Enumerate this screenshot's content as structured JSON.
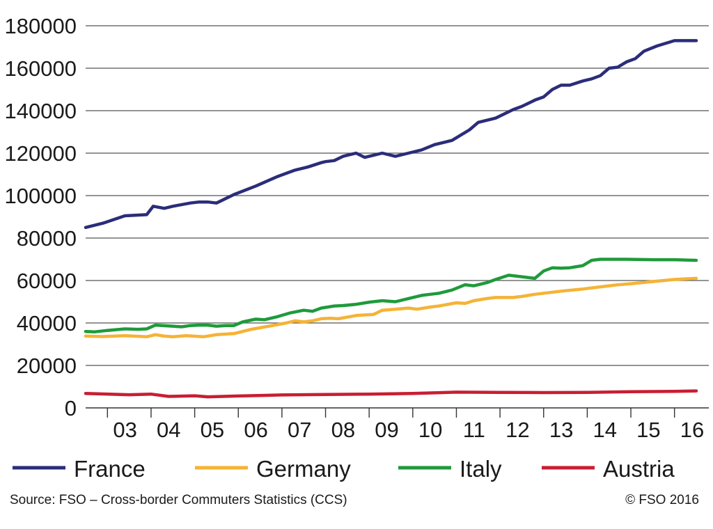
{
  "chart_data": {
    "type": "line",
    "ylim": [
      0,
      180000
    ],
    "y_ticks": [
      0,
      20000,
      40000,
      60000,
      80000,
      100000,
      120000,
      140000,
      160000,
      180000
    ],
    "y_tick_labels": [
      "0",
      "20000",
      "40000",
      "60000",
      "80000",
      "100000",
      "120000",
      "140000",
      "160000",
      "180000"
    ],
    "x_tick_labels": [
      "03",
      "04",
      "05",
      "06",
      "07",
      "08",
      "09",
      "10",
      "11",
      "12",
      "13",
      "14",
      "15",
      "16"
    ],
    "x_label_positions": [
      2003.5,
      2004.5,
      2005.5,
      2006.5,
      2007.5,
      2008.5,
      2009.5,
      2010.5,
      2011.5,
      2012.5,
      2013.5,
      2014.5,
      2015.5,
      2016.5
    ],
    "xlim": [
      2002.5,
      2016.7
    ],
    "grid": "horizontal",
    "legend_position": "bottom",
    "series": [
      {
        "name": "France",
        "color": "#2b2d7a",
        "x": [
          2002.5,
          2002.9,
          2003.4,
          2003.9,
          2004.05,
          2004.3,
          2004.5,
          2004.9,
          2005.1,
          2005.3,
          2005.5,
          2005.9,
          2006.4,
          2006.9,
          2007.3,
          2007.6,
          2007.9,
          2008.0,
          2008.2,
          2008.4,
          2008.7,
          2008.9,
          2009.1,
          2009.3,
          2009.6,
          2009.9,
          2010.2,
          2010.5,
          2010.9,
          2011.3,
          2011.5,
          2011.9,
          2012.3,
          2012.5,
          2012.6,
          2012.8,
          2013.0,
          2013.2,
          2013.4,
          2013.6,
          2013.9,
          2014.1,
          2014.3,
          2014.5,
          2014.7,
          2014.9,
          2015.1,
          2015.3,
          2015.6,
          2016.0,
          2016.5
        ],
        "values": [
          85000,
          87000,
          90500,
          91000,
          95000,
          94000,
          95000,
          96500,
          97000,
          97000,
          96500,
          100500,
          104500,
          109000,
          112000,
          113500,
          115500,
          116000,
          116500,
          118500,
          120000,
          118000,
          119000,
          120000,
          118500,
          120000,
          121500,
          124000,
          126000,
          131000,
          134500,
          136500,
          140500,
          142000,
          143000,
          145000,
          146500,
          150000,
          152000,
          152000,
          154000,
          155000,
          156500,
          160000,
          160500,
          163000,
          164500,
          168000,
          170500,
          173000,
          173000
        ]
      },
      {
        "name": "Germany",
        "color": "#f5b335",
        "x": [
          2002.5,
          2002.9,
          2003.4,
          2003.9,
          2004.1,
          2004.3,
          2004.5,
          2004.8,
          2005.2,
          2005.5,
          2005.9,
          2006.3,
          2006.7,
          2007.1,
          2007.3,
          2007.5,
          2007.7,
          2007.9,
          2008.1,
          2008.3,
          2008.7,
          2009.1,
          2009.3,
          2009.6,
          2009.9,
          2010.1,
          2010.4,
          2010.6,
          2011.0,
          2011.2,
          2011.4,
          2011.7,
          2011.9,
          2012.3,
          2012.5,
          2012.8,
          2013.2,
          2013.4,
          2013.9,
          2014.3,
          2014.7,
          2015.0,
          2015.5,
          2016.0,
          2016.5
        ],
        "values": [
          33800,
          33600,
          34000,
          33500,
          34500,
          33800,
          33500,
          34000,
          33500,
          34500,
          35000,
          37000,
          38500,
          40000,
          41000,
          40500,
          41000,
          42000,
          42200,
          42000,
          43500,
          44000,
          46000,
          46500,
          47000,
          46500,
          47500,
          48000,
          49500,
          49200,
          50500,
          51500,
          52000,
          52000,
          52500,
          53500,
          54500,
          55000,
          56000,
          57000,
          58000,
          58500,
          59500,
          60500,
          61000
        ]
      },
      {
        "name": "Italy",
        "color": "#1f9a3b",
        "x": [
          2002.5,
          2002.7,
          2003.0,
          2003.4,
          2003.7,
          2003.9,
          2004.1,
          2004.5,
          2004.7,
          2004.9,
          2005.1,
          2005.3,
          2005.5,
          2005.7,
          2005.9,
          2006.1,
          2006.4,
          2006.6,
          2006.9,
          2007.2,
          2007.5,
          2007.7,
          2007.9,
          2008.2,
          2008.4,
          2008.7,
          2009.0,
          2009.3,
          2009.6,
          2009.9,
          2010.2,
          2010.4,
          2010.6,
          2010.9,
          2011.2,
          2011.4,
          2011.7,
          2011.9,
          2012.2,
          2012.4,
          2012.8,
          2013.0,
          2013.2,
          2013.4,
          2013.6,
          2013.9,
          2014.1,
          2014.3,
          2014.9,
          2015.5,
          2016.0,
          2016.5
        ],
        "values": [
          36000,
          35800,
          36500,
          37200,
          37000,
          37200,
          39000,
          38500,
          38200,
          38800,
          39000,
          39000,
          38500,
          38800,
          38800,
          40500,
          41800,
          41500,
          43000,
          44800,
          46000,
          45500,
          47000,
          48000,
          48200,
          48800,
          49800,
          50500,
          50000,
          51500,
          53000,
          53500,
          54000,
          55500,
          58000,
          57500,
          59000,
          60500,
          62500,
          62000,
          61000,
          64500,
          66000,
          65800,
          66000,
          67000,
          69500,
          70000,
          70000,
          69800,
          69800,
          69500
        ]
      },
      {
        "name": "Austria",
        "color": "#c81e32",
        "x": [
          2002.5,
          2003.5,
          2004.0,
          2004.4,
          2005.0,
          2005.3,
          2006.0,
          2007.0,
          2008.0,
          2009.0,
          2010.0,
          2011.0,
          2012.0,
          2013.0,
          2014.0,
          2015.0,
          2016.0,
          2016.5
        ],
        "values": [
          6800,
          6200,
          6500,
          5400,
          5700,
          5200,
          5600,
          6100,
          6300,
          6500,
          6800,
          7400,
          7300,
          7200,
          7300,
          7600,
          7800,
          8000
        ]
      }
    ]
  },
  "footer": {
    "source": "Source: FSO – Cross-border Commuters Statistics (CCS)",
    "copyright": "© FSO 2016"
  }
}
